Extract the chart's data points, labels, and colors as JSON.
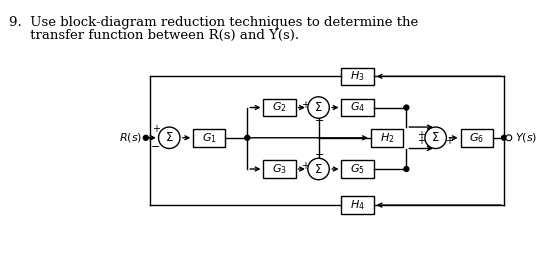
{
  "title_line1": "9.  Use block-diagram reduction techniques to determine the",
  "title_line2": "     transfer function between R(s) and Y(s).",
  "bg_color": "#ffffff",
  "line_color": "#000000",
  "box_color": "#ffffff",
  "font_size_title": 10.5,
  "font_size_labels": 8.0
}
